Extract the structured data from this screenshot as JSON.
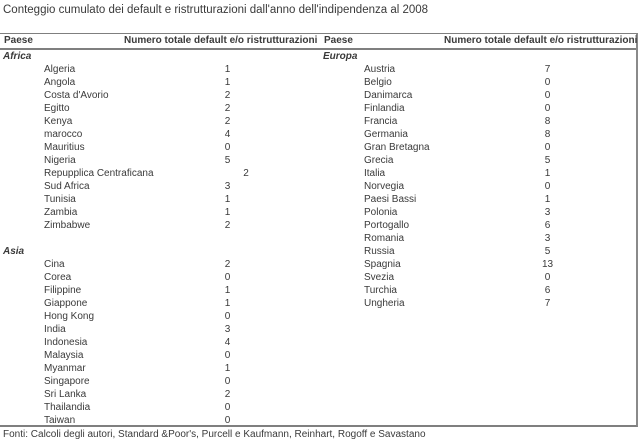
{
  "title": "Conteggio cumulato dei default e ristrutturazioni dall'anno dell'indipendenza al 2008",
  "table": {
    "column_headers": {
      "country": "Paese",
      "count": "Numero totale default e/o ristrutturazioni"
    },
    "left": {
      "sections": [
        {
          "name": "Africa",
          "rows": [
            {
              "country": "Algeria",
              "count": 1
            },
            {
              "country": "Angola",
              "count": 1
            },
            {
              "country": "Costa d'Avorio",
              "count": 2
            },
            {
              "country": "Egitto",
              "count": 2
            },
            {
              "country": "Kenya",
              "count": 2
            },
            {
              "country": "marocco",
              "count": 4
            },
            {
              "country": "Mauritius",
              "count": 0
            },
            {
              "country": "Nigeria",
              "count": 5
            },
            {
              "country": "Repupplica Centraficana",
              "count": 2
            },
            {
              "country": "Sud Africa",
              "count": 3
            },
            {
              "country": "Tunisia",
              "count": 1
            },
            {
              "country": "Zambia",
              "count": 1
            },
            {
              "country": "Zimbabwe",
              "count": 2
            }
          ]
        },
        {
          "name": "Asia",
          "rows": [
            {
              "country": "Cina",
              "count": 2
            },
            {
              "country": "Corea",
              "count": 0
            },
            {
              "country": "Filippine",
              "count": 1
            },
            {
              "country": "Giappone",
              "count": 1
            },
            {
              "country": "Hong Kong",
              "count": 0
            },
            {
              "country": "India",
              "count": 3
            },
            {
              "country": "Indonesia",
              "count": 4
            },
            {
              "country": "Malaysia",
              "count": 0
            },
            {
              "country": "Myanmar",
              "count": 1
            },
            {
              "country": "Singapore",
              "count": 0
            },
            {
              "country": "Sri Lanka",
              "count": 2
            },
            {
              "country": "Thailandia",
              "count": 0
            },
            {
              "country": "Taiwan",
              "count": 0
            }
          ]
        }
      ]
    },
    "right": {
      "sections": [
        {
          "name": "Europa",
          "rows": [
            {
              "country": "Austria",
              "count": 7
            },
            {
              "country": "Belgio",
              "count": 0
            },
            {
              "country": "Danimarca",
              "count": 0
            },
            {
              "country": "Finlandia",
              "count": 0
            },
            {
              "country": "Francia",
              "count": 8
            },
            {
              "country": "Germania",
              "count": 8
            },
            {
              "country": "Gran Bretagna",
              "count": 0
            },
            {
              "country": "Grecia",
              "count": 5
            },
            {
              "country": "Italia",
              "count": 1
            },
            {
              "country": "Norvegia",
              "count": 0
            },
            {
              "country": "Paesi Bassi",
              "count": 1
            },
            {
              "country": "Polonia",
              "count": 3
            },
            {
              "country": "Portogallo",
              "count": 6
            },
            {
              "country": "Romania",
              "count": 3
            },
            {
              "country": "Russia",
              "count": 5
            },
            {
              "country": "Spagnia",
              "count": 13
            },
            {
              "country": "Svezia",
              "count": 0
            },
            {
              "country": "Turchia",
              "count": 6
            },
            {
              "country": "Ungheria",
              "count": 7
            }
          ]
        }
      ]
    }
  },
  "footer": "Fonti: Calcoli degli autori, Standard &Poor's, Purcell e Kaufmann, Reinhart, Rogoff e Savastano"
}
